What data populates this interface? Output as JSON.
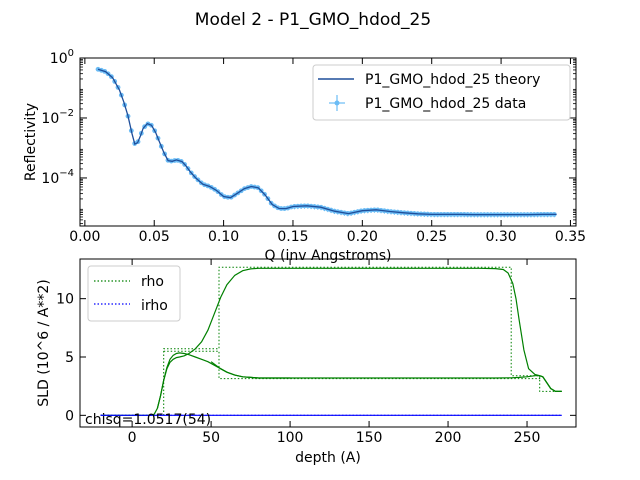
{
  "figure": {
    "title": "Model 2 - P1_GMO_hdod_25"
  },
  "chisq_text": "chisq=1.0517(54)",
  "chart_data": [
    {
      "type": "scatter",
      "xlabel": "Q (inv Angstroms)",
      "ylabel": "Reflectivity",
      "xlim": [
        -0.0035,
        0.354
      ],
      "ylim": [
        2.5e-06,
        1.0
      ],
      "yscale": "log",
      "x_ticks": [
        {
          "v": 0.0,
          "label": "0.00"
        },
        {
          "v": 0.05,
          "label": "0.05"
        },
        {
          "v": 0.1,
          "label": "0.10"
        },
        {
          "v": 0.15,
          "label": "0.15"
        },
        {
          "v": 0.2,
          "label": "0.20"
        },
        {
          "v": 0.25,
          "label": "0.25"
        },
        {
          "v": 0.3,
          "label": "0.30"
        },
        {
          "v": 0.35,
          "label": "0.35"
        }
      ],
      "y_ticks": [
        {
          "v": 1,
          "base": "10",
          "exp": "0"
        },
        {
          "v": 0.01,
          "base": "10",
          "exp": "−2"
        },
        {
          "v": 0.0001,
          "base": "10",
          "exp": "−4"
        }
      ],
      "legend_position": "top-right",
      "series": [
        {
          "name": "P1_GMO_hdod_25 theory",
          "style": "line",
          "color": "#1f4e9a",
          "x": [
            0.0095,
            0.015,
            0.02,
            0.025,
            0.028,
            0.031,
            0.034,
            0.036,
            0.038,
            0.04,
            0.042,
            0.045,
            0.048,
            0.051,
            0.054,
            0.057,
            0.06,
            0.063,
            0.066,
            0.07,
            0.073,
            0.076,
            0.08,
            0.085,
            0.09,
            0.095,
            0.1,
            0.105,
            0.11,
            0.115,
            0.12,
            0.125,
            0.13,
            0.135,
            0.14,
            0.145,
            0.15,
            0.16,
            0.17,
            0.18,
            0.19,
            0.2,
            0.21,
            0.22,
            0.23,
            0.24,
            0.25,
            0.26,
            0.27,
            0.28,
            0.29,
            0.3,
            0.31,
            0.32,
            0.33,
            0.34
          ],
          "y": [
            0.42,
            0.35,
            0.22,
            0.085,
            0.035,
            0.012,
            0.003,
            0.00135,
            0.0015,
            0.0025,
            0.0045,
            0.0065,
            0.0057,
            0.0033,
            0.0015,
            0.0007,
            0.00038,
            0.00036,
            0.0004,
            0.00035,
            0.00025,
            0.00016,
            0.0001,
            6.2e-05,
            5.2e-05,
            3.8e-05,
            2.4e-05,
            2.2e-05,
            3.1e-05,
            4.4e-05,
            5.2e-05,
            4.7e-05,
            2.7e-05,
            1.3e-05,
            9.6e-06,
            9.5e-06,
            1.12e-05,
            1.18e-05,
            1.06e-05,
            7.8e-06,
            6.5e-06,
            8.1e-06,
            8.7e-06,
            7.6e-06,
            6.9e-06,
            6.4e-06,
            6.1e-06,
            6.1e-06,
            6.1e-06,
            6e-06,
            6e-06,
            6e-06,
            6e-06,
            6e-06,
            6.1e-06,
            6.1e-06
          ]
        },
        {
          "name": "P1_GMO_hdod_25 data",
          "style": "points-with-errorbars",
          "color": "#6bbcf5"
        }
      ]
    },
    {
      "type": "line",
      "xlabel": "depth (A)",
      "ylabel": "SLD (10^6 / A**2)",
      "xlim": [
        -33,
        281
      ],
      "ylim": [
        -1.0,
        13.4
      ],
      "x_ticks": [
        {
          "v": 0,
          "label": "0"
        },
        {
          "v": 50,
          "label": "50"
        },
        {
          "v": 100,
          "label": "100"
        },
        {
          "v": 150,
          "label": "150"
        },
        {
          "v": 200,
          "label": "200"
        },
        {
          "v": 250,
          "label": "250"
        }
      ],
      "y_ticks": [
        {
          "v": 0,
          "label": "0"
        },
        {
          "v": 5,
          "label": "5"
        },
        {
          "v": 10,
          "label": "10"
        }
      ],
      "legend_position": "top-left",
      "series": [
        {
          "name": "rho",
          "color": "#008000",
          "style": "dotted-legend",
          "profile_upper": {
            "x": [
              -20,
              12,
              14,
              16,
              18,
              20,
              22,
              24,
              26,
              28,
              30,
              33,
              36,
              40,
              44,
              48,
              52,
              56,
              60,
              65,
              70,
              75,
              80,
              85,
              90,
              100,
              120,
              150,
              180,
              200,
              220,
              230,
              235,
              238,
              241,
              243,
              245,
              248,
              251,
              255,
              258,
              260,
              262,
              265,
              268,
              272
            ],
            "y": [
              0,
              0,
              0.1,
              0.6,
              1.7,
              3.0,
              4.0,
              4.55,
              4.8,
              4.95,
              5.0,
              5.1,
              5.3,
              5.7,
              6.3,
              7.3,
              8.7,
              10.1,
              11.2,
              12.0,
              12.4,
              12.55,
              12.6,
              12.6,
              12.6,
              12.6,
              12.6,
              12.6,
              12.6,
              12.6,
              12.6,
              12.58,
              12.5,
              12.2,
              11.3,
              10.0,
              8.2,
              5.6,
              4.0,
              3.5,
              3.4,
              3.3,
              2.9,
              2.3,
              2.05,
              2.05
            ]
          },
          "profile_lower": {
            "x": [
              50,
              53,
              56,
              60,
              65,
              70,
              75,
              80,
              90,
              100,
              150,
              200,
              230,
              240,
              245,
              250,
              255,
              258,
              260,
              262,
              265,
              268,
              272
            ],
            "y": [
              4.6,
              4.3,
              4.0,
              3.7,
              3.45,
              3.3,
              3.25,
              3.2,
              3.2,
              3.2,
              3.2,
              3.2,
              3.2,
              3.22,
              3.25,
              3.3,
              3.4,
              3.4,
              3.3,
              2.9,
              2.3,
              2.05,
              2.05
            ]
          },
          "upper_bump": {
            "x": [
              16,
              18,
              20,
              22,
              24,
              26,
              28,
              30,
              33,
              36,
              40,
              44,
              48,
              52,
              56,
              60,
              65,
              70,
              75,
              80,
              90,
              100
            ],
            "y": [
              0.6,
              1.7,
              3.0,
              4.1,
              4.8,
              5.15,
              5.3,
              5.35,
              5.3,
              5.2,
              5.0,
              4.8,
              4.6,
              4.3,
              4.0,
              3.7,
              3.45,
              3.3,
              3.25,
              3.2,
              3.2,
              3.2
            ]
          },
          "boxes": [
            {
              "x": [
                -20,
                20,
                20,
                55,
                55,
                240,
                240,
                258,
                258,
                272
              ],
              "y": [
                0,
                0,
                5.7,
                5.7,
                12.7,
                12.7,
                3.4,
                3.4,
                2.05,
                2.05
              ]
            },
            {
              "x": [
                20,
                55,
                55,
                258,
                258
              ],
              "y": [
                5.5,
                5.5,
                3.15,
                3.15,
                3.4
              ]
            }
          ]
        },
        {
          "name": "irho",
          "color": "#0000ff",
          "style": "dotted-legend",
          "x": [
            -20,
            272
          ],
          "y": [
            0,
            0
          ]
        }
      ]
    }
  ]
}
